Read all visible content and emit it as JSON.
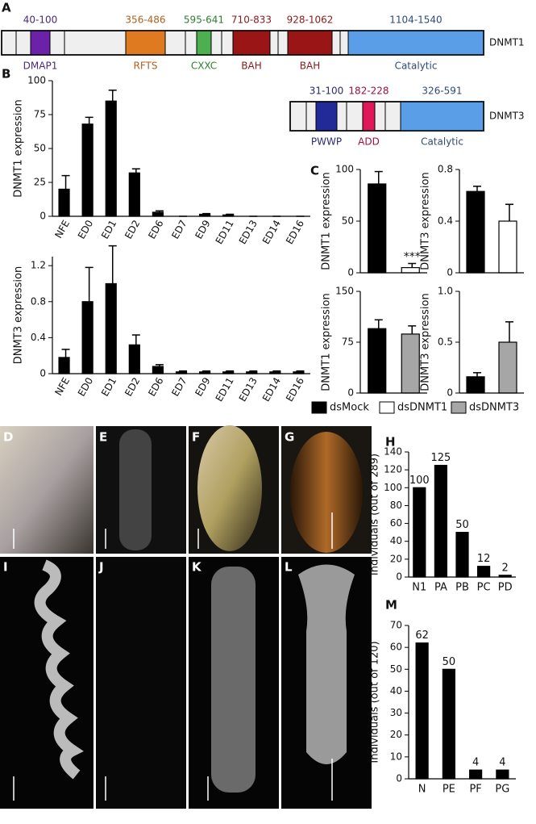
{
  "panel_labels": {
    "a": "A",
    "b": "B",
    "c": "C",
    "h": "H",
    "m": "M"
  },
  "domain_maps": [
    {
      "name": "DNMT1",
      "domains": [
        {
          "range": "40-100",
          "label": "DMAP1",
          "color": "#6b22a8",
          "text_color": "#4a2a7a"
        },
        {
          "range": "356-486",
          "label": "RFTS",
          "color": "#e07a20",
          "text_color": "#b0601e"
        },
        {
          "range": "595-641",
          "label": "CXXC",
          "color": "#4caf50",
          "text_color": "#2e7d32"
        },
        {
          "range": "710-833",
          "label": "BAH",
          "color": "#9a1515",
          "text_color": "#8b1a1a"
        },
        {
          "range": "928-1062",
          "label": "BAH",
          "color": "#9a1515",
          "text_color": "#8b1a1a"
        },
        {
          "range": "1104-1540",
          "label": "Catalytic",
          "color": "#5b9ee8",
          "text_color": "#2e4a7a"
        }
      ]
    },
    {
      "name": "DNMT3",
      "domains": [
        {
          "range": "31-100",
          "label": "PWWP",
          "color": "#222a99",
          "text_color": "#2a2a70"
        },
        {
          "range": "182-228",
          "label": "ADD",
          "color": "#e0185a",
          "text_color": "#9a1040"
        },
        {
          "range": "326-591",
          "label": "Catalytic",
          "color": "#5b9ee8",
          "text_color": "#2e4a7a"
        }
      ]
    }
  ],
  "legend": [
    {
      "name": "dsMock",
      "color": "#000000"
    },
    {
      "name": "dsDNMT1",
      "color": "#ffffff"
    },
    {
      "name": "dsDNMT3",
      "color": "#a6a6a6"
    }
  ],
  "images": [
    {
      "label": "D"
    },
    {
      "label": "E"
    },
    {
      "label": "F"
    },
    {
      "label": "G"
    },
    {
      "label": "I"
    },
    {
      "label": "J"
    },
    {
      "label": "K"
    },
    {
      "label": "L"
    }
  ],
  "chart_data": [
    {
      "type": "bar",
      "ylabel": "DNMT1 expression",
      "categories": [
        "NFE",
        "ED0",
        "ED1",
        "ED2",
        "ED6",
        "ED7",
        "ED9",
        "ED11",
        "ED13",
        "ED14",
        "ED16"
      ],
      "values": [
        20,
        68,
        85,
        32,
        3,
        0,
        1.5,
        1,
        0,
        0,
        0
      ],
      "errors": [
        10,
        5,
        8,
        3,
        1,
        0,
        0.5,
        0.5,
        0,
        0,
        0
      ],
      "colors": [
        "#000000"
      ],
      "ylim": [
        0,
        100
      ],
      "yticks": [
        0,
        25,
        50,
        75,
        100
      ]
    },
    {
      "type": "bar",
      "ylabel": "DNMT3 expression",
      "categories": [
        "NFE",
        "ED0",
        "ED1",
        "ED2",
        "ED6",
        "ED7",
        "ED9",
        "ED11",
        "ED13",
        "ED14",
        "ED16"
      ],
      "values": [
        0.18,
        0.8,
        1.0,
        0.32,
        0.08,
        0.02,
        0.02,
        0.02,
        0.02,
        0.02,
        0.02
      ],
      "errors": [
        0.09,
        0.38,
        0.42,
        0.11,
        0.02,
        0.01,
        0.01,
        0.01,
        0.01,
        0.01,
        0.01
      ],
      "colors": [
        "#000000"
      ],
      "ylim": [
        0,
        1.3
      ],
      "yticks": [
        0,
        0.4,
        0.8,
        1.2
      ]
    },
    {
      "type": "bar",
      "ylabel": "DNMT1 expression",
      "values": [
        86,
        5
      ],
      "errors": [
        12,
        4
      ],
      "colors": [
        "#000000",
        "#ffffff"
      ],
      "ylim": [
        0,
        100
      ],
      "yticks": [
        0,
        50,
        100
      ],
      "annotations": [
        {
          "text": "***",
          "bar": 1
        }
      ]
    },
    {
      "type": "bar",
      "ylabel": "DNMT3 expression",
      "values": [
        0.63,
        0.4
      ],
      "errors": [
        0.04,
        0.13
      ],
      "colors": [
        "#000000",
        "#ffffff"
      ],
      "ylim": [
        0,
        0.8
      ],
      "yticks": [
        0,
        0.4,
        0.8
      ]
    },
    {
      "type": "bar",
      "ylabel": "DNMT1 expression",
      "values": [
        95,
        87
      ],
      "errors": [
        13,
        12
      ],
      "colors": [
        "#000000",
        "#a6a6a6"
      ],
      "ylim": [
        0,
        150
      ],
      "yticks": [
        0,
        75,
        150
      ]
    },
    {
      "type": "bar",
      "ylabel": "DNMT3 expression",
      "values": [
        0.16,
        0.5
      ],
      "errors": [
        0.04,
        0.2
      ],
      "colors": [
        "#000000",
        "#a6a6a6"
      ],
      "ylim": [
        0,
        1
      ],
      "yticks": [
        0,
        0.5,
        {
          "value": 1,
          "label": "1.0"
        }
      ]
    },
    {
      "type": "bar",
      "ylabel": "Individuals  (out of 289)",
      "categories": [
        "N1",
        "PA",
        "PB",
        "PC",
        "PD"
      ],
      "values": [
        100,
        125,
        50,
        12,
        2
      ],
      "value_labels_shown": true,
      "colors": [
        "#000000"
      ],
      "ylim": [
        0,
        140
      ],
      "yticks": [
        0,
        20,
        40,
        60,
        80,
        100,
        120,
        140
      ]
    },
    {
      "type": "bar",
      "ylabel": "Individuals (out of 120)",
      "categories": [
        "N",
        "PE",
        "PF",
        "PG"
      ],
      "values": [
        62,
        50,
        4,
        4
      ],
      "value_labels_shown": true,
      "colors": [
        "#000000"
      ],
      "ylim": [
        0,
        70
      ],
      "yticks": [
        0,
        10,
        20,
        30,
        40,
        50,
        60,
        70
      ]
    }
  ]
}
